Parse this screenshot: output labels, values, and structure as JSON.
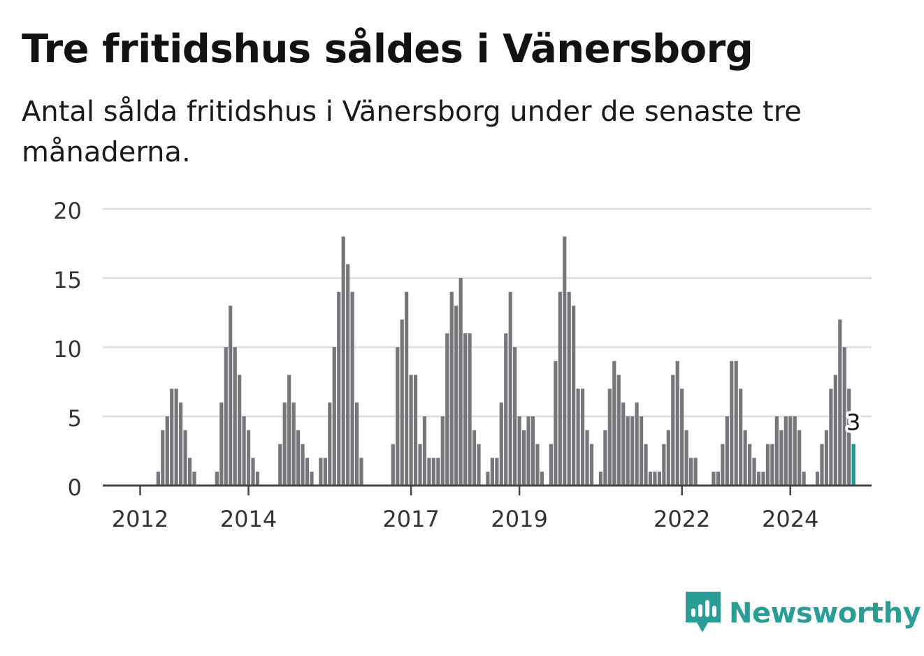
{
  "title": "Tre fritidshus såldes i Vänersborg",
  "subtitle": "Antal sålda fritidshus i Vänersborg under de senaste tre månaderna.",
  "brand": {
    "name": "Newsworthy"
  },
  "colors": {
    "bar": "#77767b",
    "highlight": "#1a9b96",
    "grid": "#dddddd",
    "axis": "#444444"
  },
  "chart_data": {
    "type": "bar",
    "start": "2011-07",
    "ylim": [
      0,
      20
    ],
    "yticks": [
      0,
      5,
      10,
      15,
      20
    ],
    "xticks": [
      {
        "label": "2012",
        "date": "2012-01"
      },
      {
        "label": "2014",
        "date": "2014-01"
      },
      {
        "label": "2017",
        "date": "2017-01"
      },
      {
        "label": "2019",
        "date": "2019-01"
      },
      {
        "label": "2022",
        "date": "2022-01"
      },
      {
        "label": "2024",
        "date": "2024-01"
      }
    ],
    "values": [
      0,
      0,
      0,
      0,
      0,
      0,
      0,
      0,
      0,
      0,
      1,
      4,
      5,
      7,
      7,
      6,
      4,
      2,
      1,
      0,
      0,
      0,
      0,
      1,
      6,
      10,
      13,
      10,
      8,
      5,
      4,
      2,
      1,
      0,
      0,
      0,
      0,
      3,
      6,
      8,
      6,
      4,
      3,
      2,
      1,
      0,
      2,
      2,
      6,
      10,
      14,
      18,
      16,
      14,
      6,
      2,
      0,
      0,
      0,
      0,
      0,
      0,
      3,
      10,
      12,
      14,
      8,
      8,
      3,
      5,
      2,
      2,
      2,
      5,
      11,
      14,
      13,
      15,
      11,
      11,
      4,
      3,
      0,
      1,
      2,
      2,
      6,
      11,
      14,
      10,
      5,
      4,
      5,
      5,
      3,
      1,
      0,
      3,
      9,
      14,
      18,
      14,
      13,
      7,
      7,
      4,
      3,
      0,
      1,
      4,
      7,
      9,
      8,
      6,
      5,
      5,
      6,
      5,
      3,
      1,
      1,
      1,
      3,
      4,
      8,
      9,
      7,
      4,
      2,
      2,
      0,
      0,
      0,
      1,
      1,
      3,
      5,
      9,
      9,
      7,
      4,
      3,
      2,
      1,
      1,
      3,
      3,
      5,
      4,
      5,
      5,
      5,
      4,
      1,
      0,
      0,
      1,
      3,
      4,
      7,
      8,
      12,
      10,
      7,
      3
    ],
    "highlight_label": "3"
  }
}
